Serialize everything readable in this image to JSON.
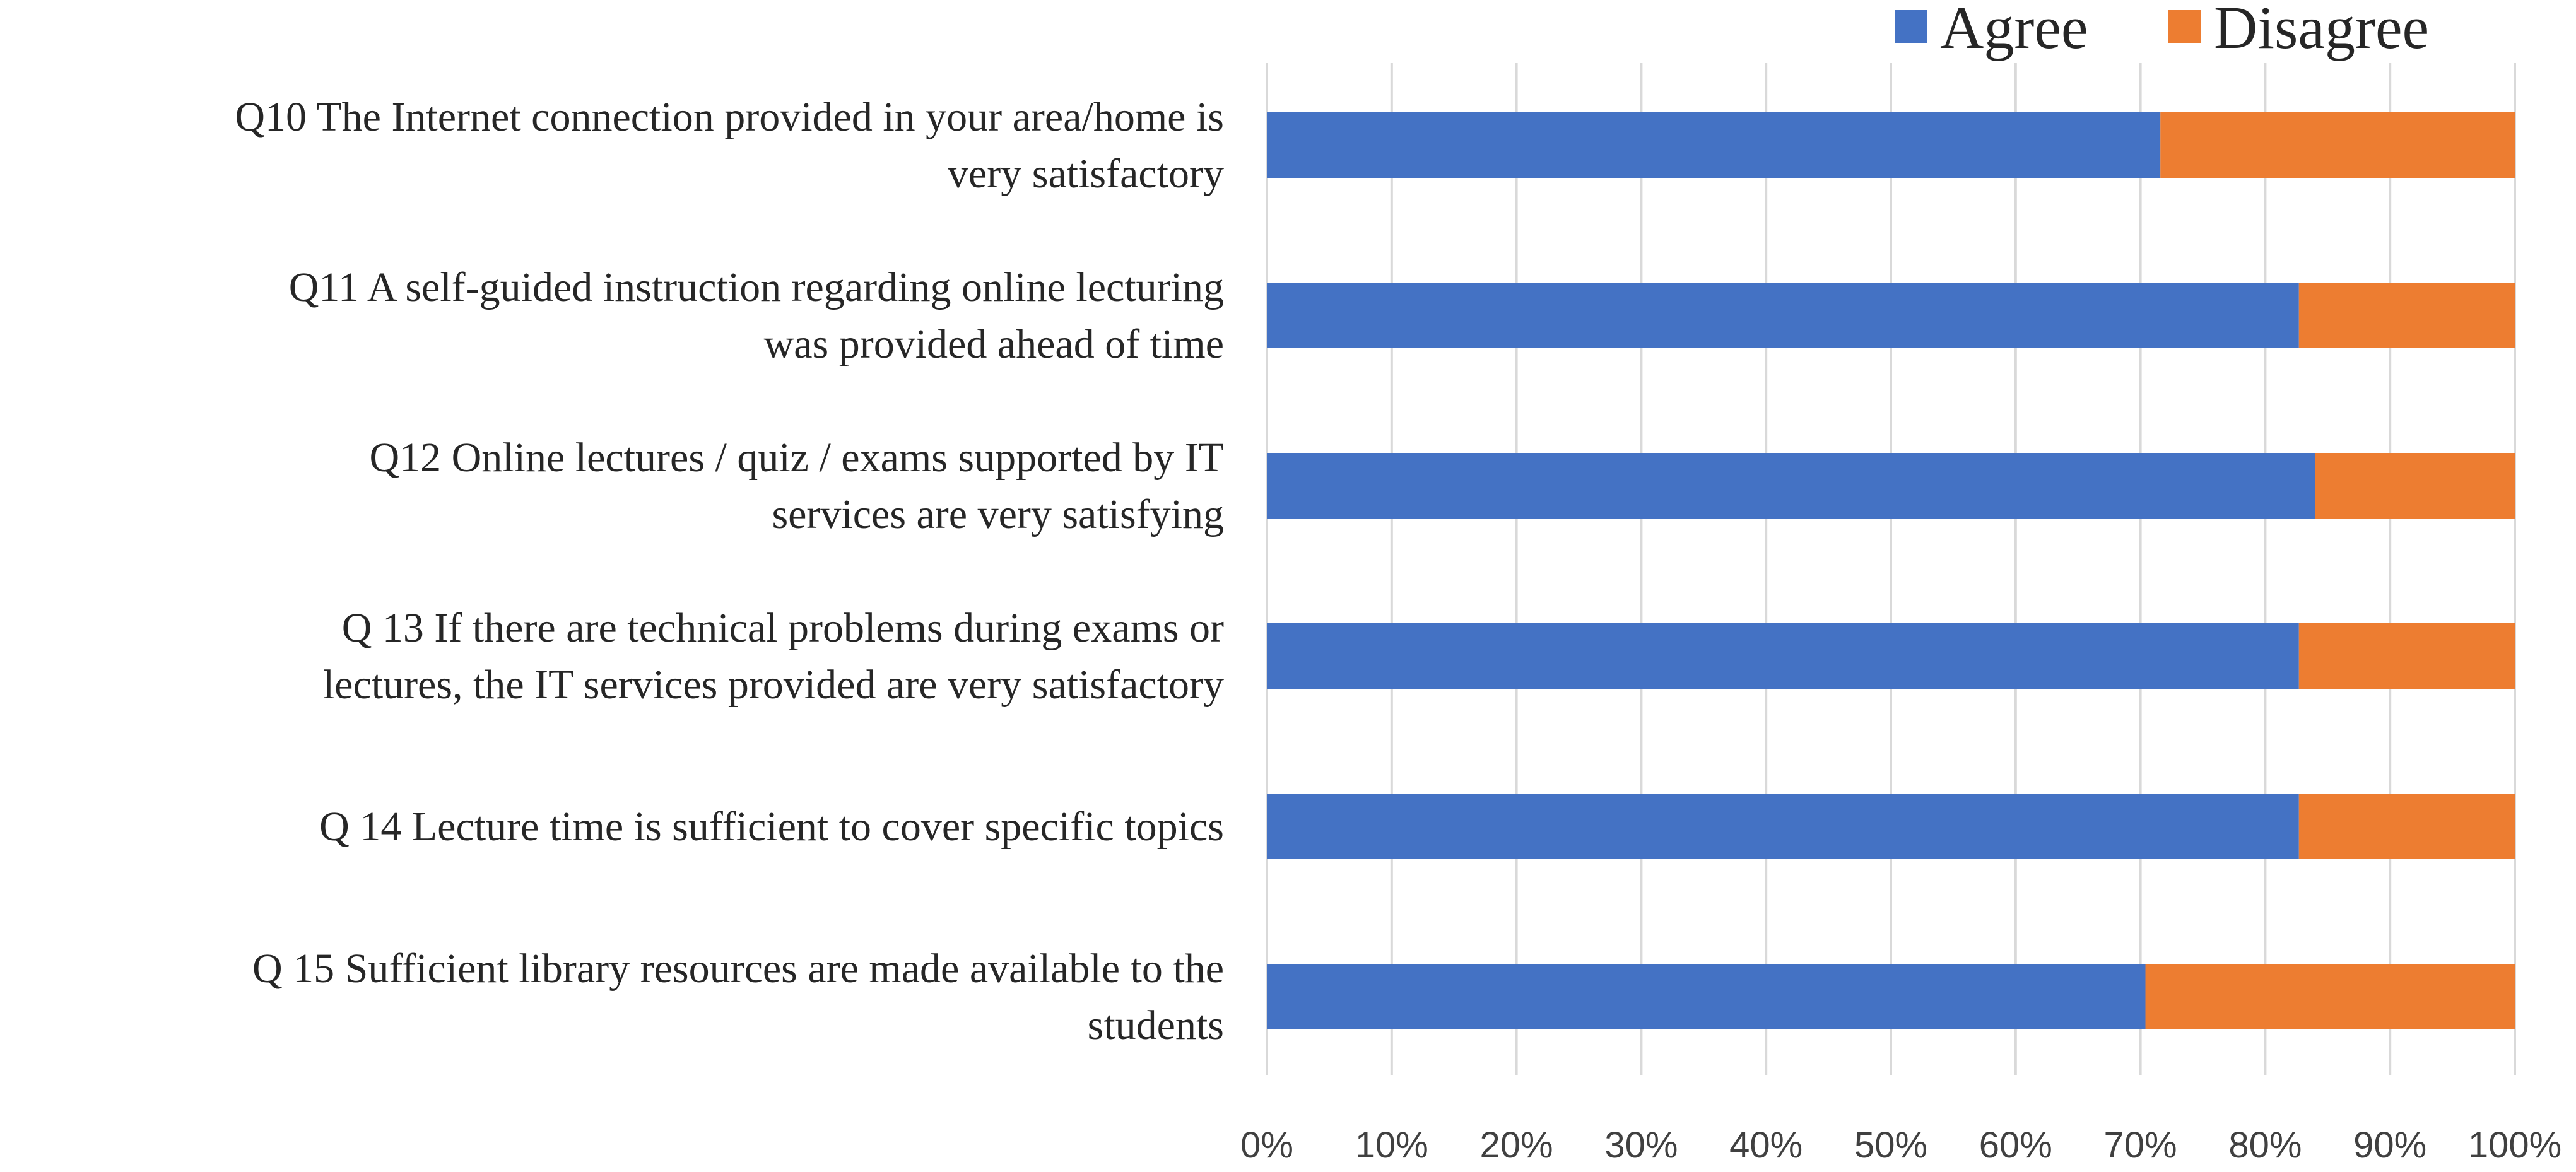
{
  "chart_data": {
    "type": "bar",
    "orientation": "horizontal",
    "stacked": "percent",
    "categories": [
      [
        "Q10 The Internet connection provided in your area/home is",
        "very satisfactory"
      ],
      [
        "Q11 A self-guided instruction regarding online lecturing",
        "was provided ahead of time"
      ],
      [
        "Q12 Online lectures / quiz / exams supported by IT",
        "services are very satisfying"
      ],
      [
        "Q 13 If there are technical problems during exams or",
        "lectures, the IT services provided are very satisfactory"
      ],
      [
        "Q 14 Lecture time is sufficient to cover specific topics"
      ],
      [
        "Q 15 Sufficient library resources are made available to the",
        "students"
      ]
    ],
    "series": [
      {
        "name": "Agree",
        "color": "#4472C4",
        "values": [
          71.6,
          82.7,
          84.0,
          82.7,
          82.7,
          70.4
        ]
      },
      {
        "name": "Disagree",
        "color": "#ED7D31",
        "values": [
          28.4,
          17.3,
          16.0,
          17.3,
          17.3,
          29.6
        ]
      }
    ],
    "xlim": [
      0,
      100
    ],
    "xticks": [
      "0%",
      "10%",
      "20%",
      "30%",
      "40%",
      "50%",
      "60%",
      "70%",
      "80%",
      "90%",
      "100%"
    ],
    "grid": true,
    "legend": "top-right",
    "title": "",
    "xlabel": "",
    "ylabel": ""
  }
}
